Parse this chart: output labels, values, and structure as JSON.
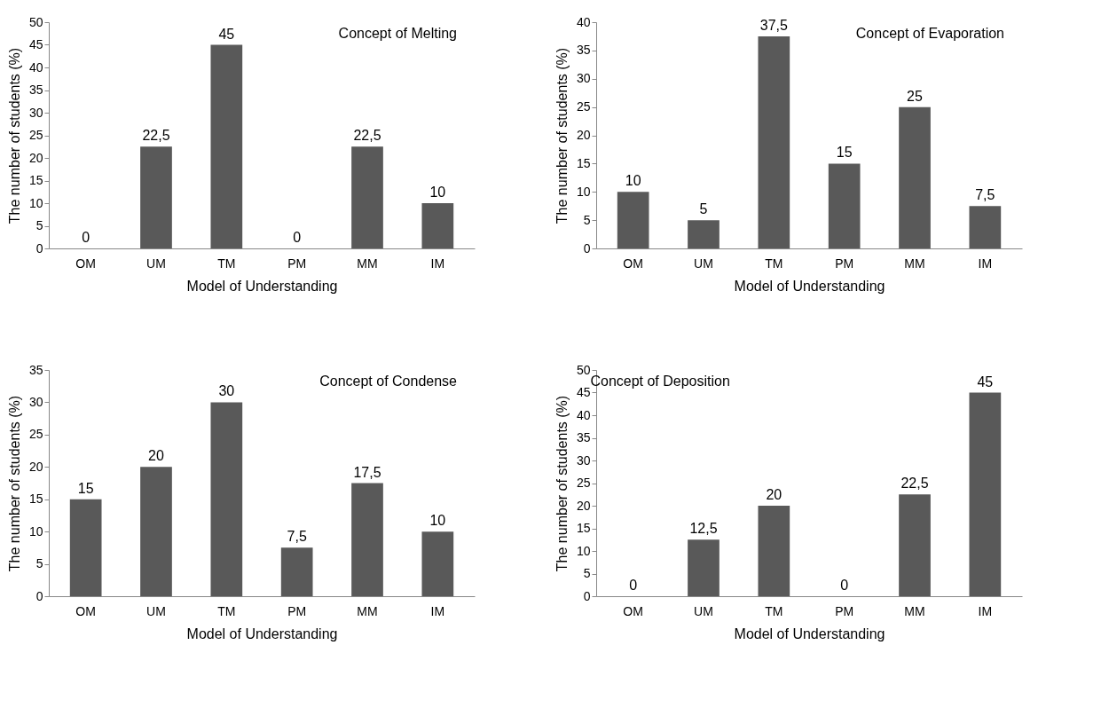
{
  "chart_data": [
    {
      "type": "bar",
      "title": "Concept of Melting",
      "xlabel": "Model of Understanding",
      "ylabel": "The number of students (%)",
      "categories": [
        "OM",
        "UM",
        "TM",
        "PM",
        "MM",
        "IM"
      ],
      "values": [
        0,
        22.5,
        45,
        0,
        22.5,
        10
      ],
      "value_labels": [
        "0",
        "22,5",
        "45",
        "0",
        "22,5",
        "10"
      ],
      "color": "#595959",
      "ylim": [
        0,
        50
      ],
      "yticks": [
        0,
        5,
        10,
        15,
        20,
        25,
        30,
        35,
        40,
        45,
        50
      ],
      "grid": false
    },
    {
      "type": "bar",
      "title": "Concept of Evaporation",
      "xlabel": "Model of Understanding",
      "ylabel": "The number of students (%)",
      "categories": [
        "OM",
        "UM",
        "TM",
        "PM",
        "MM",
        "IM"
      ],
      "values": [
        10,
        5,
        37.5,
        15,
        25,
        7.5
      ],
      "value_labels": [
        "10",
        "5",
        "37,5",
        "15",
        "25",
        "7,5"
      ],
      "color": "#595959",
      "ylim": [
        0,
        40
      ],
      "yticks": [
        0,
        5,
        10,
        15,
        20,
        25,
        30,
        35,
        40
      ],
      "grid": false
    },
    {
      "type": "bar",
      "title": "Concept of Condense",
      "xlabel": "Model of Understanding",
      "ylabel": "The number of students (%)",
      "categories": [
        "OM",
        "UM",
        "TM",
        "PM",
        "MM",
        "IM"
      ],
      "values": [
        15,
        20,
        30,
        7.5,
        17.5,
        10
      ],
      "value_labels": [
        "15",
        "20",
        "30",
        "7,5",
        "17,5",
        "10"
      ],
      "color": "#595959",
      "ylim": [
        0,
        35
      ],
      "yticks": [
        0,
        5,
        10,
        15,
        20,
        25,
        30,
        35
      ],
      "grid": false
    },
    {
      "type": "bar",
      "title": "Concept of Deposition",
      "xlabel": "Model of Understanding",
      "ylabel": "The number of students (%)",
      "categories": [
        "OM",
        "UM",
        "TM",
        "PM",
        "MM",
        "IM"
      ],
      "values": [
        0,
        12.5,
        20,
        0,
        22.5,
        45
      ],
      "value_labels": [
        "0",
        "12,5",
        "20",
        "0",
        "22,5",
        "45"
      ],
      "color": "#595959",
      "ylim": [
        0,
        50
      ],
      "yticks": [
        0,
        5,
        10,
        15,
        20,
        25,
        30,
        35,
        40,
        45,
        50
      ],
      "grid": false
    }
  ]
}
